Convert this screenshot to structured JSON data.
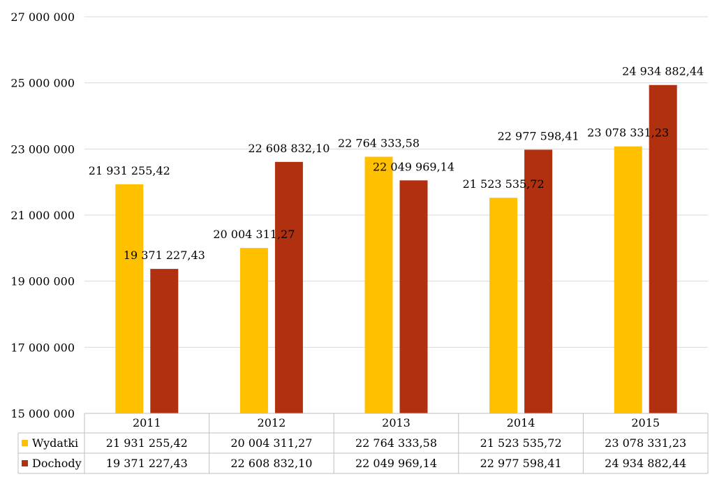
{
  "chart_data": {
    "type": "bar",
    "categories": [
      "2011",
      "2012",
      "2013",
      "2014",
      "2015"
    ],
    "series": [
      {
        "name": "Wydatki",
        "color": "#FFC000",
        "values": [
          21931255.42,
          20004311.27,
          22764333.58,
          21523535.72,
          23078331.23
        ],
        "labels": [
          "21 931 255,42",
          "20 004 311,27",
          "22 764 333,58",
          "21 523 535,72",
          "23 078 331,23"
        ]
      },
      {
        "name": "Dochody",
        "color": "#B03010",
        "values": [
          19371227.43,
          22608832.1,
          22049969.14,
          22977598.41,
          24934882.44
        ],
        "labels": [
          "19 371 227,43",
          "22 608 832,10",
          "22 049 969,14",
          "22 977 598,41",
          "24 934 882,44"
        ]
      }
    ],
    "ylim": [
      15000000,
      27000000
    ],
    "yticks": [
      15000000,
      17000000,
      19000000,
      21000000,
      23000000,
      25000000,
      27000000
    ],
    "ytick_labels": [
      "15 000 000",
      "17 000 000",
      "19 000 000",
      "21 000 000",
      "23 000 000",
      "25 000 000",
      "27 000 000"
    ],
    "grid": true,
    "legend": "data-table-left",
    "title": "",
    "xlabel": "",
    "ylabel": ""
  }
}
